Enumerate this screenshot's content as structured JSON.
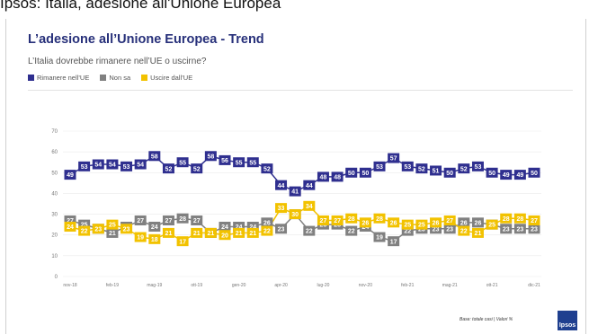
{
  "caption": "Ipsos: Italia, adesione all'Unione Europea",
  "footnote": "Base: totale casi | Valori %",
  "logo_text": "Ipsos",
  "colors": {
    "stay": "#2f2f8f",
    "dontknow": "#808080",
    "leave": "#f2c200"
  },
  "chart_data": {
    "type": "line",
    "title": "L’adesione all’Unione Europea - Trend",
    "subtitle": "L’Italia dovrebbe rimanere nell’UE o uscirne?",
    "ylim": [
      0,
      70
    ],
    "yticks": [
      0,
      10,
      20,
      30,
      40,
      50,
      60,
      70
    ],
    "xticks": [
      {
        "label": "nov-18",
        "index": 0
      },
      {
        "label": "feb-19",
        "index": 3
      },
      {
        "label": "mag-19",
        "index": 6
      },
      {
        "label": "ott-19",
        "index": 9
      },
      {
        "label": "gen-20",
        "index": 12
      },
      {
        "label": "apr-20",
        "index": 15
      },
      {
        "label": "lug-20",
        "index": 18
      },
      {
        "label": "nov-20",
        "index": 21
      },
      {
        "label": "feb-21",
        "index": 24
      },
      {
        "label": "mag-21",
        "index": 27
      },
      {
        "label": "ott-21",
        "index": 30
      },
      {
        "label": "dic-21",
        "index": 33
      }
    ],
    "series": [
      {
        "name": "Rimanere nell’UE",
        "color": "#2f2f8f",
        "values": [
          49,
          53,
          54,
          54,
          53,
          54,
          58,
          52,
          55,
          52,
          58,
          56,
          55,
          55,
          52,
          44,
          41,
          44,
          48,
          48,
          50,
          50,
          53,
          57,
          53,
          52,
          51,
          50,
          52,
          53,
          50,
          49,
          49,
          50
        ]
      },
      {
        "name": "Non sa",
        "color": "#808080",
        "values": [
          27,
          25,
          23,
          21,
          24,
          27,
          24,
          27,
          28,
          27,
          21,
          24,
          24,
          24,
          26,
          23,
          30,
          22,
          25,
          25,
          22,
          24,
          19,
          17,
          22,
          23,
          23,
          23,
          26,
          26,
          25,
          23,
          23,
          23
        ]
      },
      {
        "name": "Uscire dall’UE",
        "color": "#f2c200",
        "values": [
          24,
          22,
          23,
          25,
          23,
          19,
          18,
          21,
          17,
          21,
          21,
          20,
          21,
          21,
          22,
          33,
          30,
          34,
          27,
          27,
          28,
          26,
          28,
          26,
          25,
          25,
          26,
          27,
          22,
          21,
          25,
          28,
          28,
          27
        ]
      }
    ]
  }
}
